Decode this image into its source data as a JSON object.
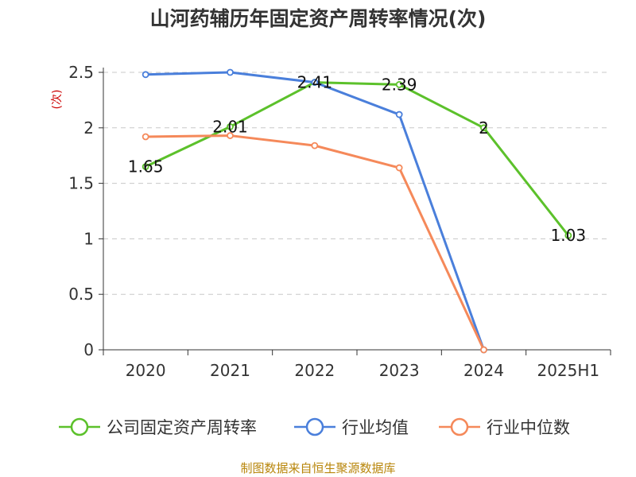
{
  "chart_data": {
    "type": "line",
    "title": "山河药辅历年固定资产周转率情况(次)",
    "ylabel": "(次)",
    "xlabel": "",
    "categories": [
      "2020",
      "2021",
      "2022",
      "2023",
      "2024",
      "2025H1"
    ],
    "yticks": [
      "0",
      "0.5",
      "1",
      "1.5",
      "2",
      "2.5"
    ],
    "ylim": [
      0,
      2.5
    ],
    "grid": true,
    "legend_position": "bottom",
    "series": [
      {
        "name": "公司固定资产周转率",
        "color": "#5cc12b",
        "values": [
          1.65,
          2.01,
          2.41,
          2.39,
          2,
          1.03
        ],
        "labels": [
          "1.65",
          "2.01",
          "2.41",
          "2.39",
          "2",
          "1.03"
        ]
      },
      {
        "name": "行业均值",
        "color": "#4a7fdb",
        "values": [
          2.48,
          2.5,
          2.41,
          2.12,
          0,
          null
        ]
      },
      {
        "name": "行业中位数",
        "color": "#f5895a",
        "values": [
          1.92,
          1.93,
          1.84,
          1.64,
          0,
          null
        ]
      }
    ]
  },
  "source": "制图数据来自恒生聚源数据库"
}
